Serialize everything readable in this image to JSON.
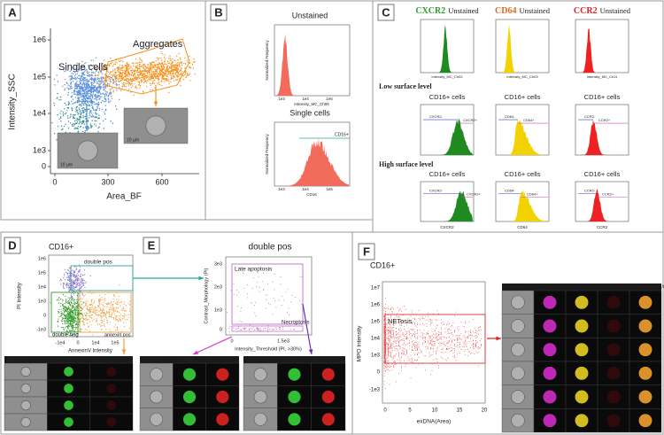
{
  "panel_a": {
    "label": "A",
    "y_axis": "Intensity_SSC",
    "x_axis": "Area_BF",
    "yticks": [
      "1e6",
      "1e5",
      "1e4",
      "1e3",
      "0"
    ],
    "xticks": [
      "0",
      "300",
      "600"
    ],
    "gates": [
      "Aggregates",
      "Single cells"
    ],
    "scale_bars": [
      "10 µm",
      "10 µm"
    ]
  },
  "panel_b": {
    "label": "B",
    "plots": [
      {
        "title": "Unstained",
        "y_axis": "Normalized Frequency",
        "x_axis": "Intensity_MC_Ch06",
        "xticks": [
          "1e3",
          "1e4",
          "1e5"
        ]
      },
      {
        "title": "Single cells",
        "y_axis": "Normalized Frequency",
        "x_axis": "CD16",
        "xticks": [
          "1e3",
          "1e4",
          "1e5"
        ],
        "gate": "CD16+"
      }
    ]
  },
  "panel_c": {
    "label": "C",
    "unstained": [
      {
        "marker": "CXCR2",
        "suffix": "Unstained",
        "x_axis": "Intensity_MC_Ch02"
      },
      {
        "marker": "CD64",
        "suffix": "Unstained",
        "x_axis": "Intensity_MC_Ch03"
      },
      {
        "marker": "CCR2",
        "suffix": "Unstained",
        "x_axis": "Intensity_MC_Ch11"
      }
    ],
    "rows": [
      {
        "title": "Low surface level",
        "plots": [
          {
            "title": "CD16+ cells",
            "gates": [
              "CXCR2-",
              "CXCR2+"
            ]
          },
          {
            "title": "CD16+ cells",
            "gates": [
              "CD64-",
              "CD64+"
            ]
          },
          {
            "title": "CD16+ cells",
            "gates": [
              "CCR2-",
              "CCR2+"
            ]
          }
        ]
      },
      {
        "title": "High surface level",
        "plots": [
          {
            "title": "CD16+ cells",
            "gates": [
              "CXCR2-",
              "CXCR2+"
            ],
            "x_axis": "CXCR2"
          },
          {
            "title": "CD16+ cells",
            "gates": [
              "CD64-",
              "CD64+"
            ],
            "x_axis": "CD64"
          },
          {
            "title": "CD16+ cells",
            "gates": [
              "CCR2-",
              "CCR2+"
            ],
            "x_axis": "CCR2"
          }
        ]
      }
    ]
  },
  "panel_d": {
    "label": "D",
    "title": "CD16+",
    "y_axis": "PI Intensity",
    "x_axis": "AnnexinV Intensity",
    "yticks": [
      "1e6",
      "1e5",
      "1e4",
      "1e3",
      "0",
      "-1e3"
    ],
    "xticks": [
      "-1e4",
      "0",
      "1e4",
      "1e5"
    ],
    "gates": [
      "double pos",
      "double neg",
      "annexin pos"
    ],
    "strip_headers": [
      "bright field",
      "AnnexinV",
      "PI"
    ]
  },
  "panel_e": {
    "label": "E",
    "title": "double pos",
    "y_axis": "Contrast_Morphology (PI)",
    "x_axis": "Intensity_Threshold (PI, >30%)",
    "yticks": [
      "3e3",
      "2e3",
      "1e3",
      "0"
    ],
    "xticks": [
      "0",
      "1.5e3"
    ],
    "gates": [
      "Late apoptosis",
      "Necroptosis"
    ],
    "strips": [
      {
        "headers": [
          "bright field",
          "AnnexinV",
          "PI"
        ]
      },
      {
        "headers": [
          "bright field",
          "AnnexinV",
          "PI"
        ]
      }
    ]
  },
  "panel_f": {
    "label": "F",
    "title": "CD16+",
    "y_axis": "MPO Intensity",
    "x_axis": "exDNA(Area)",
    "yticks": [
      "1e7",
      "1e6",
      "1e5",
      "1e4",
      "1e3",
      "0",
      "-1e3"
    ],
    "xticks": [
      "0",
      "5",
      "10",
      "15",
      "20"
    ],
    "gate": "NETosis",
    "gallery_headers": [
      "bright field",
      "CD16",
      "MPO",
      "PI",
      "Merge(MPO/PI/CD16)"
    ]
  }
}
